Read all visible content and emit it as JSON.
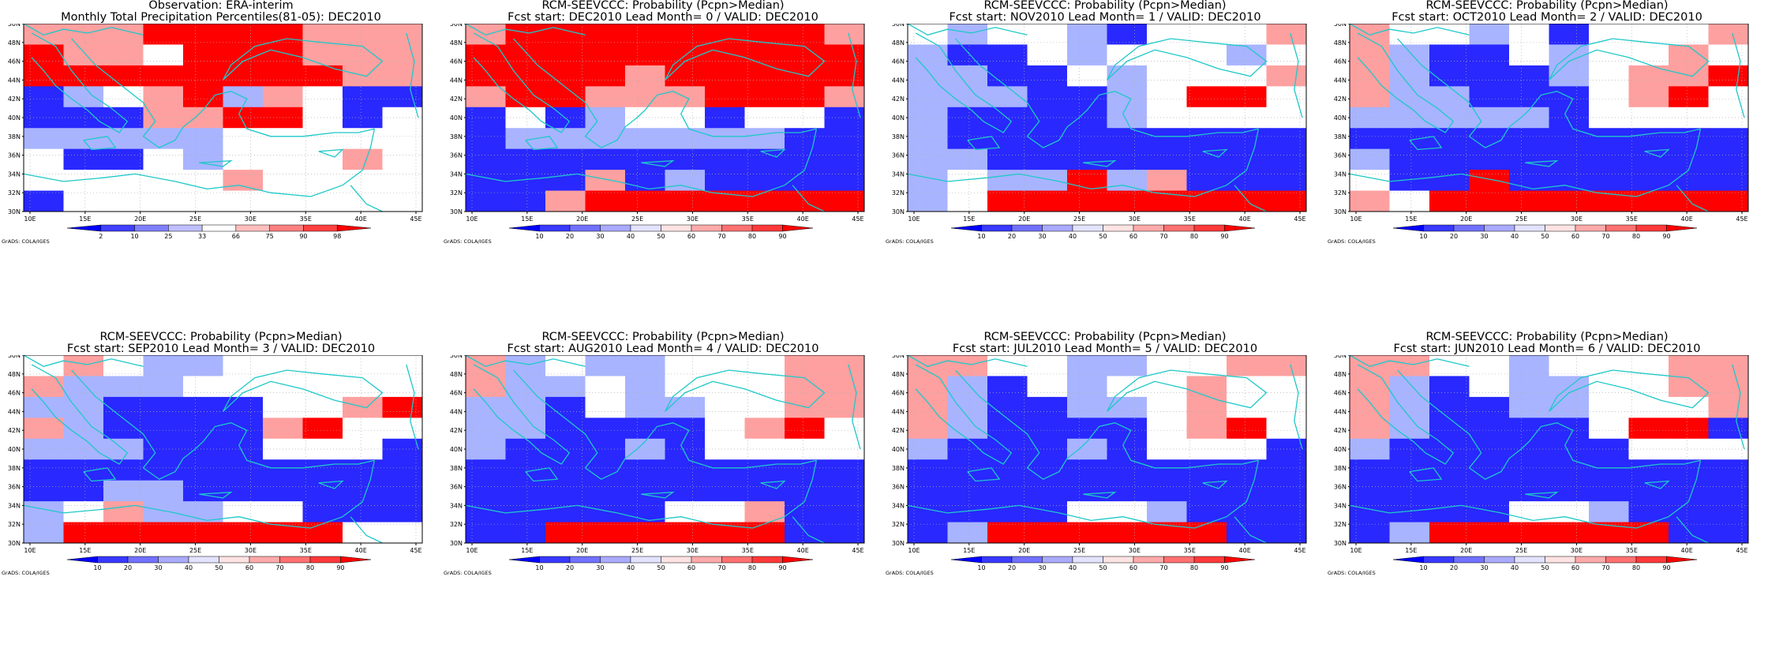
{
  "panels": [
    {
      "line1": "Observation: ERA-interim",
      "line2": "Monthly Total Precipitation Percentiles(81-05): DEC2010",
      "colorbar_ticks": [
        "2",
        "10",
        "25",
        "33",
        "66",
        "75",
        "90",
        "98"
      ],
      "cells": [
        "pppRRRRppp",
        "RppwRRRppp",
        "RRRRRRRRpp",
        "blwpRlpwbb",
        "bbbppRRwbw",
        "lllllwwwww",
        "wbbwlwwwpw",
        "wwwwwpwwww",
        "bwwwwwwwww"
      ]
    },
    {
      "line1": "RCM-SEEVCCC: Probability (Pcpn>Median)",
      "line2": "Fcst start: DEC2010  Lead Month= 0 / VALID: DEC2010",
      "colorbar_ticks": [
        "10",
        "20",
        "30",
        "40",
        "50",
        "60",
        "70",
        "80",
        "90"
      ],
      "cells": [
        "pRRRRRRRRp",
        "RRRRRRRRRR",
        "RRRRpRRRRR",
        "pRRpppRRRp",
        "bwblwwbwwb",
        "blllllllbb",
        "bbbbbbbbbb",
        "bbbpblbbbb",
        "bbpRRRRRRR"
      ]
    },
    {
      "line1": "RCM-SEEVCCC: Probability (Pcpn>Median)",
      "line2": "Fcst start: NOV2010  Lead Month= 1 / VALID: DEC2010",
      "colorbar_ticks": [
        "10",
        "20",
        "30",
        "40",
        "50",
        "60",
        "70",
        "80",
        "90"
      ],
      "cells": [
        "wlwwlbwwwp",
        "lbbwlwwwlw",
        "llbbwlwwwp",
        "lllbblwRRw",
        "lbbbblwwww",
        "lbbbbbbbbb",
        "llbbbbbbbb",
        "lwllRlpbbb",
        "lwRRRRRRRR"
      ]
    },
    {
      "line1": "RCM-SEEVCCC: Probability (Pcpn>Median)",
      "line2": "Fcst start: OCT2010  Lead Month= 2 / VALID: DEC2010",
      "colorbar_ticks": [
        "10",
        "20",
        "30",
        "40",
        "50",
        "60",
        "70",
        "80",
        "90"
      ],
      "cells": [
        "pwwlwbwwwp",
        "plbbwlwwpw",
        "plbbblwppR",
        "pllbbbwpRw",
        "lllllbwwww",
        "bbbbbbbbbb",
        "lbbbbbbbbb",
        "wbbRbbbbbb",
        "pwRRRRRRRR"
      ]
    },
    {
      "line1": "RCM-SEEVCCC: Probability (Pcpn>Median)",
      "line2": "Fcst start: SEP2010  Lead Month= 3 / VALID: DEC2010",
      "colorbar_ticks": [
        "10",
        "20",
        "30",
        "40",
        "50",
        "60",
        "70",
        "80",
        "90"
      ],
      "cells": [
        "wpwllwwwww",
        "plllwwwwww",
        "llbbbbwwpR",
        "plbbbbpRww",
        "lllbbbwwwb",
        "bbbbbbbbbb",
        "bbllbbbbbb",
        "lwpllwwbbb",
        "lRRRRRRRww"
      ]
    },
    {
      "line1": "RCM-SEEVCCC: Probability (Pcpn>Median)",
      "line2": "Fcst start: AUG2010  Lead Month= 4 / VALID: DEC2010",
      "colorbar_ticks": [
        "10",
        "20",
        "30",
        "40",
        "50",
        "60",
        "70",
        "80",
        "90"
      ],
      "cells": [
        "plwllwwwpp",
        "pllwlwwwpp",
        "llbwllwwpp",
        "llbbbbwpRw",
        "lbbblbwwww",
        "bbbbbbbbbb",
        "bbbbbbbbbb",
        "bbbbbwwpbb",
        "bbRRRRRRbb"
      ]
    },
    {
      "line1": "RCM-SEEVCCC: Probability (Pcpn>Median)",
      "line2": "Fcst start: JUL2010  Lead Month= 5 / VALID: DEC2010",
      "colorbar_ticks": [
        "10",
        "20",
        "30",
        "40",
        "50",
        "60",
        "70",
        "80",
        "90"
      ],
      "cells": [
        "ppwwllwwpp",
        "plbwlwwpww",
        "plbbllwpww",
        "plbbbbwpRw",
        "lbbblbwwwb",
        "bbbbbbbbbb",
        "bbbbbbbbbb",
        "bbbbwwlbbb",
        "blRRRRRRbb"
      ]
    },
    {
      "line1": "RCM-SEEVCCC: Probability (Pcpn>Median)",
      "line2": "Fcst start: JUN2010  Lead Month= 6 / VALID: DEC2010",
      "colorbar_ticks": [
        "10",
        "20",
        "30",
        "40",
        "50",
        "60",
        "70",
        "80",
        "90"
      ],
      "cells": [
        "ppwwlwwwpp",
        "plbwllwwpp",
        "plbbllwwwp",
        "plbbbbwRRb",
        "lbbbbbbwww",
        "bbbbbbbbbb",
        "bbbbbbbbbb",
        "bbbbwwlbbb",
        "blRRRRRRbb"
      ]
    }
  ],
  "axes": {
    "lat_labels": [
      "50N",
      "48N",
      "46N",
      "44N",
      "42N",
      "40N",
      "38N",
      "36N",
      "34N",
      "32N",
      "30N"
    ],
    "lon_labels": [
      "10E",
      "15E",
      "20E",
      "25E",
      "30E",
      "35E",
      "40E",
      "45E"
    ]
  },
  "credit": "GrADS: COLA/IGES",
  "colors": {
    "R": "#ff0000",
    "r": "#ff5a5a",
    "p": "#ffa0a0",
    "w": "#ffffff",
    "l": "#a8b4ff",
    "b": "#2828ff",
    "B": "#0000ff",
    "coast": "#1ec8c8",
    "grid_dots": "#b0b0b0"
  }
}
